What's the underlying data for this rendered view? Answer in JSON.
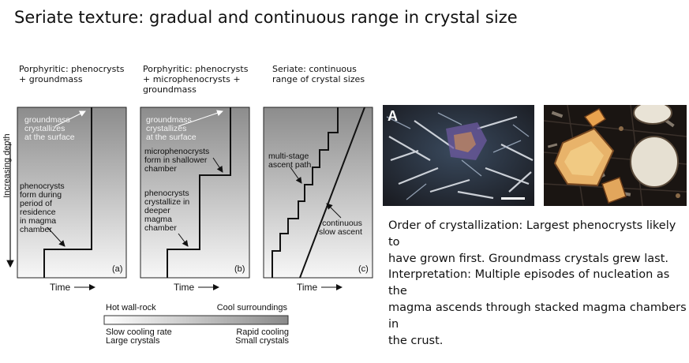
{
  "slide": {
    "title": "Seriate texture: gradual and continuous range in crystal size"
  },
  "diagram": {
    "y_axis_label": "Increasing depth",
    "x_axis_label": "Time",
    "panels": [
      {
        "caption": "Porphyritic: phenocrysts + groundmass",
        "caption_lines": [
          "Porphyritic: phenocrysts",
          "+ groundmass"
        ],
        "letter": "(a)",
        "labels": [
          {
            "lines": [
              "groundmass",
              "crystallizes",
              "at the surface"
            ]
          },
          {
            "lines": [
              "phenocrysts",
              "form during",
              "period of",
              "residence",
              "in magma",
              "chamber"
            ]
          }
        ]
      },
      {
        "caption": "Porphyritic: phenocrysts + microphenocrysts + groundmass",
        "caption_lines": [
          "Porphyritic: phenocrysts",
          "+ microphenocrysts +",
          "groundmass"
        ],
        "letter": "(b)",
        "labels": [
          {
            "lines": [
              "groundmass",
              "crystallizes",
              "at the surface"
            ]
          },
          {
            "lines": [
              "microphenocrysts",
              "form in shallower",
              "chamber"
            ]
          },
          {
            "lines": [
              "phenocrysts",
              "crystallize in",
              "deeper",
              "magma",
              "chamber"
            ]
          }
        ]
      },
      {
        "caption": "Seriate: continuous range of crystal sizes",
        "caption_lines": [
          "Seriate: continuous",
          "range of crystal sizes"
        ],
        "letter": "(c)",
        "labels": [
          {
            "lines": [
              "multi-stage",
              "ascent path"
            ]
          },
          {
            "lines": [
              "continuous",
              "slow ascent"
            ]
          }
        ]
      }
    ],
    "legend": {
      "left_top": "Hot wall-rock",
      "right_top": "Cool surroundings",
      "left_bottom": [
        "Slow cooling rate",
        "Large crystals"
      ],
      "right_bottom": [
        "Rapid cooling",
        "Small crystals"
      ]
    }
  },
  "photos": [
    {
      "name": "micrograph-a",
      "label": "A"
    },
    {
      "name": "micrograph-b",
      "label": ""
    }
  ],
  "text_blocks": {
    "order": "Order of crystallization: Largest phenocrysts likely to have grown first. Groundmass crystals grew last.",
    "order_lines": [
      "Order of crystallization: Largest phenocrysts likely to",
      "have grown first. Groundmass crystals grew last."
    ],
    "interpretation": "Interpretation: Multiple episodes of nucleation as the magma ascends through stacked magma chambers in the crust.",
    "interpretation_lines": [
      "Interpretation: Multiple episodes of nucleation as the",
      "magma ascends through stacked magma chambers in",
      "the crust."
    ]
  }
}
